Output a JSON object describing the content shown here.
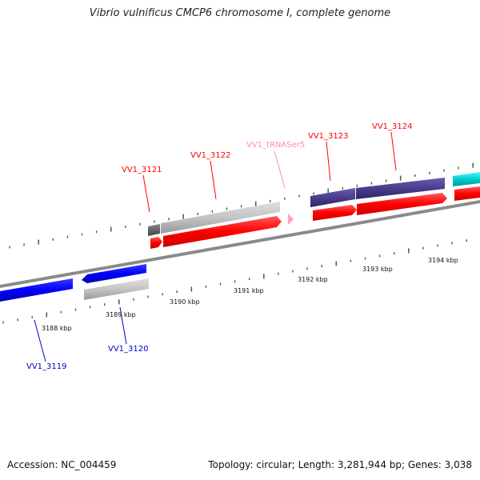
{
  "title": "Vibrio vulnificus CMCP6 chromosome I, complete genome",
  "footer": {
    "accession": "Accession: NC_004459",
    "stats": "Topology: circular; Length: 3,281,944 bp; Genes: 3,038"
  },
  "colors": {
    "forward_cds": "#ff0000",
    "reverse_cds": "#0000ff",
    "cog_gray": "#b8b8b8",
    "cog_purple": "#4a3d8c",
    "cog_cyan": "#00c8c8",
    "trna": "#ff9ec8",
    "backbone": "#8a8a8a",
    "tick": "#2a7a2a",
    "label_forward": "#ff0000",
    "label_reverse": "#0000cc",
    "label_trna": "#ff88bb"
  },
  "position_labels": [
    "3188 kbp",
    "3189 kbp",
    "3190 kbp",
    "3191 kbp",
    "3192 kbp",
    "3193 kbp",
    "3194 kbp"
  ],
  "gene_labels": [
    {
      "text": "VV1_3119",
      "strand": "reverse"
    },
    {
      "text": "VV1_3120",
      "strand": "reverse"
    },
    {
      "text": "VV1_3121",
      "strand": "forward"
    },
    {
      "text": "VV1_3122",
      "strand": "forward"
    },
    {
      "text": "VV1_tRNASer5",
      "strand": "trna"
    },
    {
      "text": "VV1_3123",
      "strand": "forward"
    },
    {
      "text": "VV1_3124",
      "strand": "forward"
    }
  ]
}
